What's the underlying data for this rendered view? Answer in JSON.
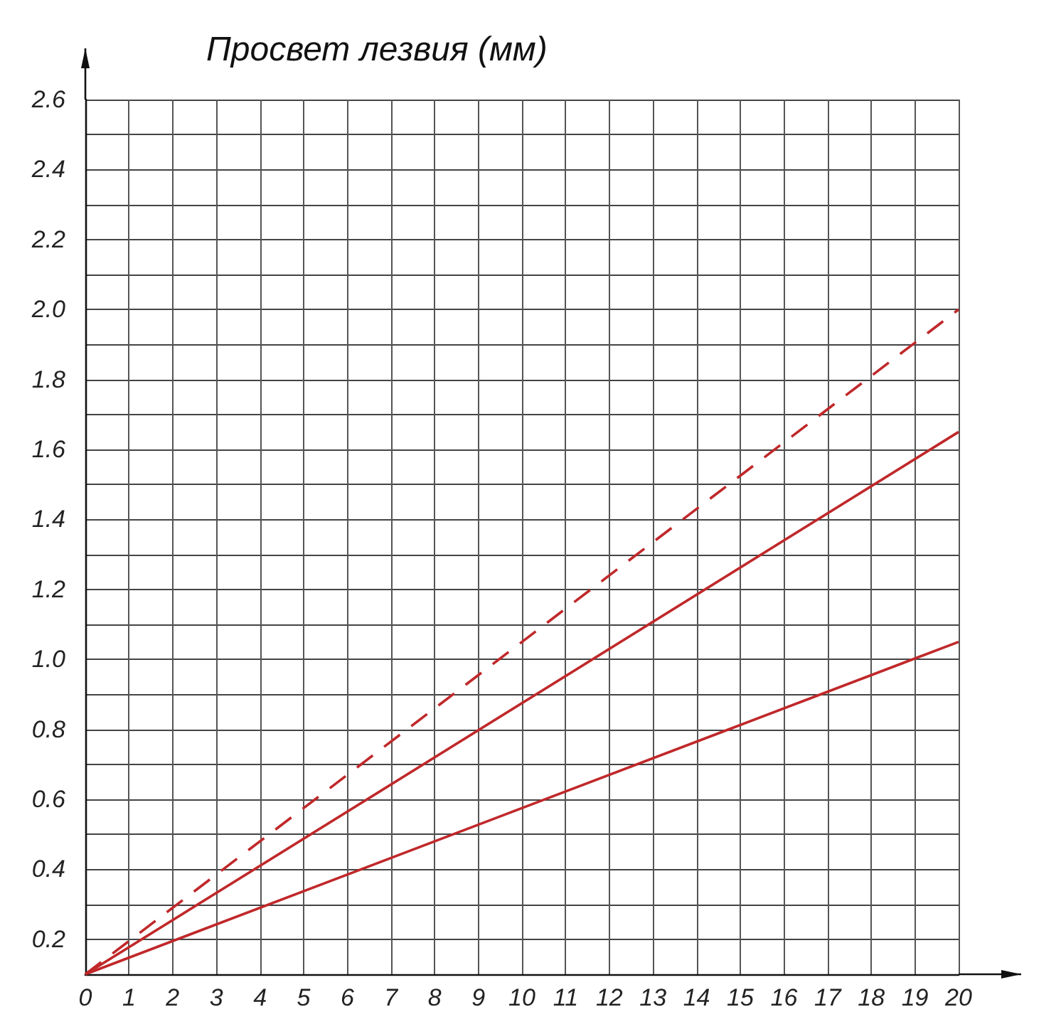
{
  "chart_data": {
    "type": "line",
    "title": "Просвет лезвия (мм)",
    "x": [
      0,
      20
    ],
    "series": [
      {
        "color": "#c0282a",
        "values": [
          0.1,
          2.0
        ],
        "line_style": "dashed"
      },
      {
        "color": "#c0282a",
        "values": [
          0.1,
          1.65
        ],
        "line_style": "solid"
      },
      {
        "color": "#c0282a",
        "values": [
          0.1,
          1.05
        ],
        "line_style": "solid"
      }
    ],
    "xlim": [
      0,
      20
    ],
    "xticks": [
      0,
      1,
      2,
      3,
      4,
      5,
      6,
      7,
      8,
      9,
      10,
      11,
      12,
      13,
      14,
      15,
      16,
      17,
      18,
      19,
      20
    ],
    "ylim": [
      0.1,
      2.6
    ],
    "yticks": [
      {
        "value": 0.1,
        "label": null
      },
      {
        "value": 0.2,
        "label": "0.2"
      },
      {
        "value": 0.3,
        "label": null
      },
      {
        "value": 0.4,
        "label": "0.4"
      },
      {
        "value": 0.5,
        "label": null
      },
      {
        "value": 0.6,
        "label": "0.6"
      },
      {
        "value": 0.7,
        "label": null
      },
      {
        "value": 0.8,
        "label": "0.8"
      },
      {
        "value": 0.9,
        "label": null
      },
      {
        "value": 1.0,
        "label": "1.0"
      },
      {
        "value": 1.1,
        "label": null
      },
      {
        "value": 1.2,
        "label": "1.2"
      },
      {
        "value": 1.3,
        "label": null
      },
      {
        "value": 1.4,
        "label": "1.4"
      },
      {
        "value": 1.5,
        "label": null
      },
      {
        "value": 1.6,
        "label": "1.6"
      },
      {
        "value": 1.7,
        "label": null
      },
      {
        "value": 1.8,
        "label": "1.8"
      },
      {
        "value": 1.9,
        "label": null
      },
      {
        "value": 2.0,
        "label": "2.0"
      },
      {
        "value": 2.1,
        "label": null
      },
      {
        "value": 2.2,
        "label": "2.2"
      },
      {
        "value": 2.3,
        "label": null
      },
      {
        "value": 2.4,
        "label": "2.4"
      },
      {
        "value": 2.5,
        "label": null
      },
      {
        "value": 2.6,
        "label": "2.6"
      }
    ],
    "grid": true,
    "marker": "none"
  }
}
